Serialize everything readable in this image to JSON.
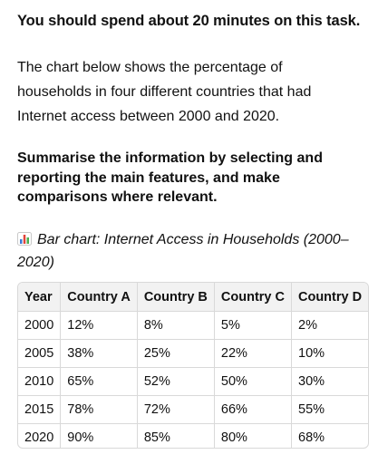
{
  "task": {
    "heading": "You should spend about 20 minutes on this task.",
    "intro_lines": [
      "The chart below shows the percentage of",
      "households in four different countries that had",
      "Internet access between 2000 and 2020."
    ],
    "instruction_lines": [
      "Summarise the information by selecting and",
      "reporting the main features, and make",
      "comparisons where relevant."
    ]
  },
  "chart": {
    "icon": "bar-chart-icon",
    "caption_line1": "Bar chart: Internet Access in Households (2000–",
    "caption_line2": "2020)"
  },
  "table": {
    "headers": [
      "Year",
      "Country A",
      "Country B",
      "Country C",
      "Country D"
    ],
    "rows": [
      [
        "2000",
        "12%",
        "8%",
        "5%",
        "2%"
      ],
      [
        "2005",
        "38%",
        "25%",
        "22%",
        "10%"
      ],
      [
        "2010",
        "65%",
        "52%",
        "50%",
        "30%"
      ],
      [
        "2015",
        "78%",
        "72%",
        "66%",
        "55%"
      ],
      [
        "2020",
        "90%",
        "85%",
        "80%",
        "68%"
      ]
    ]
  },
  "colors": {
    "text": "#111111",
    "header_bg": "#f2f2f2",
    "border": "#d9d9d9",
    "icon_blue": "#3b7dd8",
    "icon_red": "#e2443a",
    "icon_green": "#4caf50"
  }
}
